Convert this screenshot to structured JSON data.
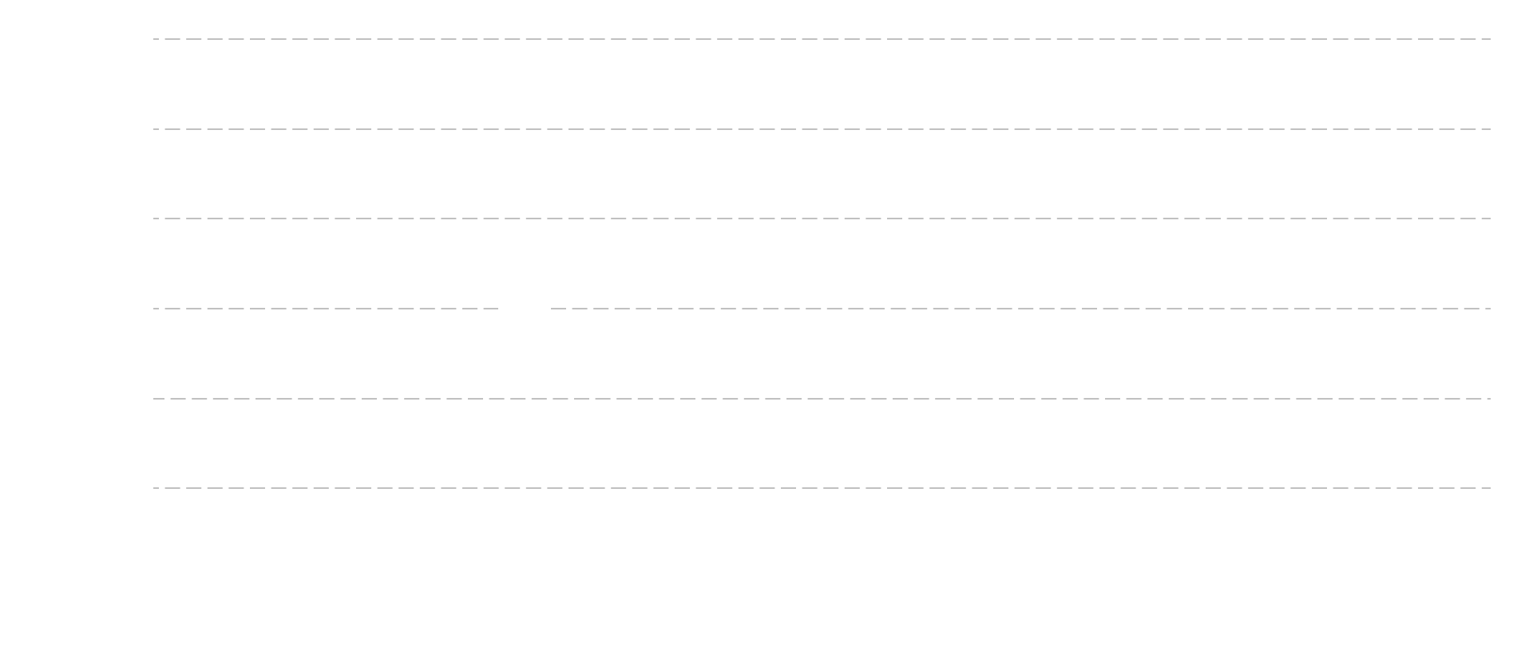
{
  "chart_data": {
    "type": "line",
    "grid": true
  }
}
